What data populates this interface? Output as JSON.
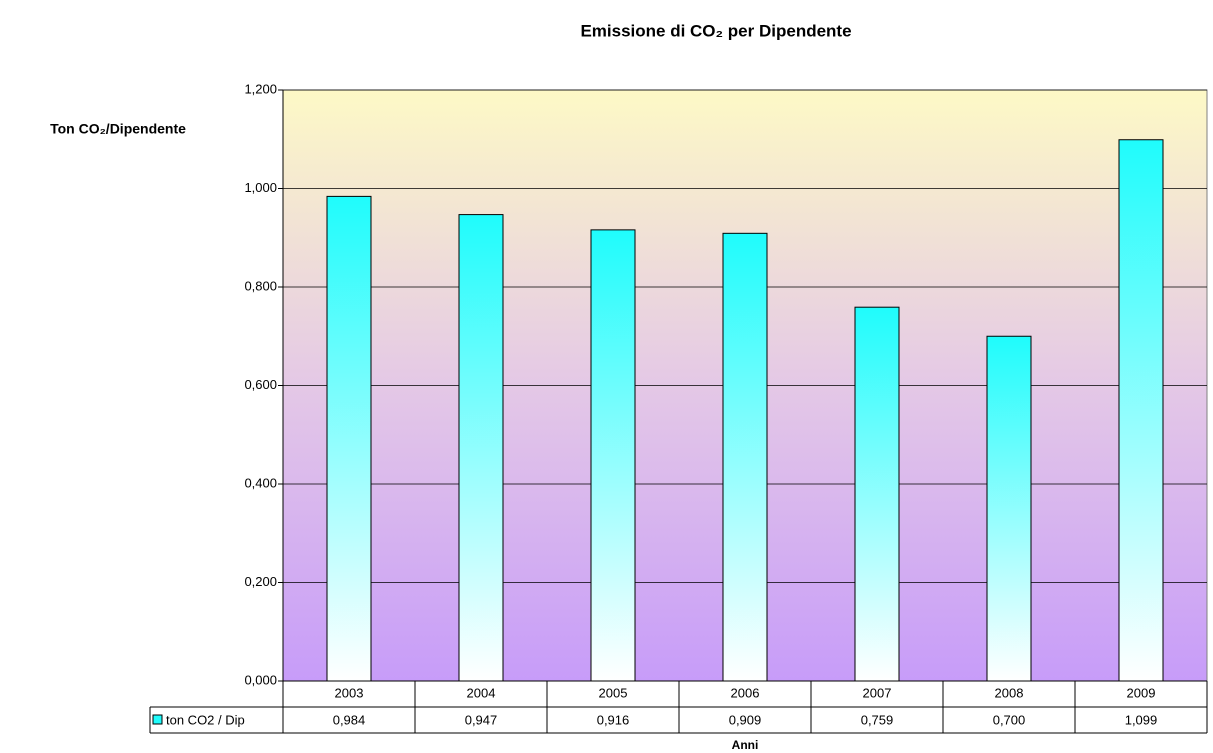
{
  "chart_data": {
    "type": "bar",
    "title": "Emissione di CO₂ per Dipendente",
    "y_label": "Ton CO₂/Dipendente",
    "x_label": "Anni",
    "categories": [
      "2003",
      "2004",
      "2005",
      "2006",
      "2007",
      "2008",
      "2009"
    ],
    "series": [
      {
        "name": "ton CO2 / Dip",
        "color": "#1ffcfc",
        "values": [
          0.984,
          0.947,
          0.916,
          0.909,
          0.759,
          0.7,
          1.099
        ],
        "value_labels": [
          "0,984",
          "0,947",
          "0,916",
          "0,909",
          "0,759",
          "0,700",
          "1,099"
        ]
      }
    ],
    "ylim": [
      0,
      1.2
    ],
    "yticks": [
      {
        "value": 0,
        "label": "0,000"
      },
      {
        "value": 0.2,
        "label": "0,200"
      },
      {
        "value": 0.4,
        "label": "0,400"
      },
      {
        "value": 0.6,
        "label": "0,600"
      },
      {
        "value": 0.8,
        "label": "0,800"
      },
      {
        "value": 1,
        "label": "1,000"
      },
      {
        "value": 1.2,
        "label": "1,200"
      }
    ],
    "grid": true
  }
}
